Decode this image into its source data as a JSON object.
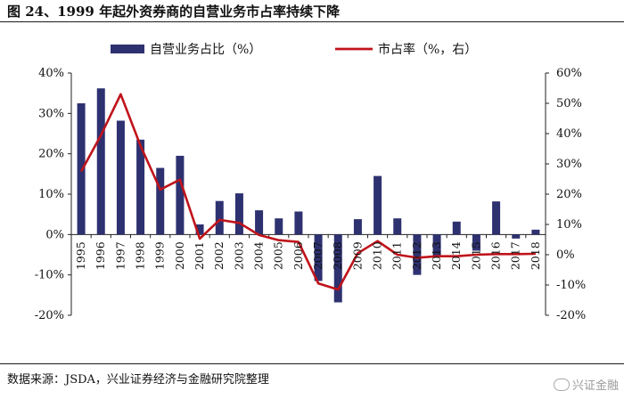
{
  "title": "图 24、1999 年起外资券商的自营业务市占率持续下降",
  "source": "数据来源：JSDA，兴业证券经济与金融研究院整理",
  "watermark": "兴证金融",
  "colors": {
    "bar": "#2e3170",
    "line": "#c0131b",
    "axis": "#222222"
  },
  "chart_data": {
    "type": "bar",
    "categories": [
      "1995",
      "1996",
      "1997",
      "1998",
      "1999",
      "2000",
      "2001",
      "2002",
      "2003",
      "2004",
      "2005",
      "2006",
      "2007",
      "2008",
      "2009",
      "2010",
      "2011",
      "2012",
      "2013",
      "2014",
      "2015",
      "2016",
      "2017",
      "2018"
    ],
    "series": [
      {
        "name": "自营业务占比（%）",
        "type": "bar",
        "axis": "left",
        "values": [
          32.5,
          36.2,
          28.2,
          23.5,
          16.5,
          19.5,
          2.5,
          8.3,
          10.2,
          6.0,
          4.0,
          5.7,
          -11.5,
          -16.8,
          3.8,
          14.5,
          4.0,
          -10.0,
          -5.2,
          3.2,
          -4.0,
          8.2,
          -1.0,
          1.2
        ]
      },
      {
        "name": "市占率（%，右）",
        "type": "line",
        "axis": "right",
        "values": [
          27.5,
          39.5,
          53.0,
          36.0,
          21.5,
          24.8,
          5.3,
          11.5,
          10.5,
          6.5,
          4.8,
          4.2,
          -9.5,
          -11.5,
          0.5,
          4.5,
          0.0,
          -1.0,
          -0.5,
          -0.5,
          0.0,
          0.2,
          0.2,
          0.3
        ]
      }
    ],
    "y_left": {
      "ylim": [
        -20,
        40
      ],
      "ticks": [
        "-20%",
        "-10%",
        "0%",
        "10%",
        "20%",
        "30%",
        "40%"
      ]
    },
    "y_right": {
      "ylim": [
        -20,
        60
      ],
      "ticks": [
        "-20%",
        "-10%",
        "0%",
        "10%",
        "20%",
        "30%",
        "40%",
        "50%",
        "60%"
      ]
    },
    "legend_position": "top-center",
    "grid": false
  }
}
